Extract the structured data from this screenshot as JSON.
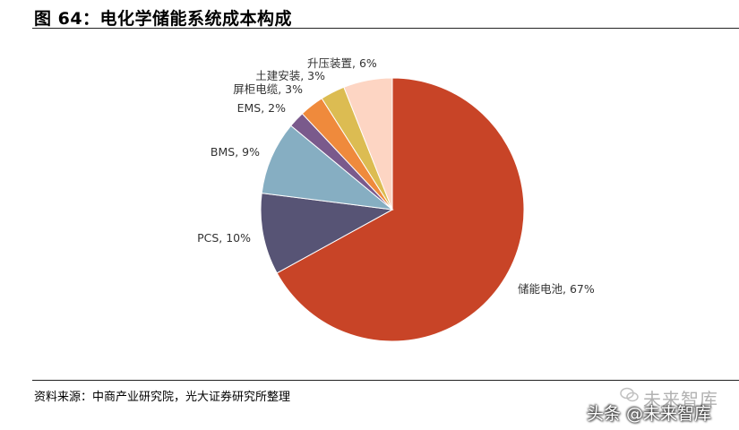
{
  "header": {
    "title": "图 64：电化学储能系统成本构成"
  },
  "footer": {
    "source": "资料来源：中商产业研究院，光大证券研究所整理"
  },
  "watermark": {
    "line1": "未来智库",
    "line2": "头条 @未来智库"
  },
  "chart_data": {
    "type": "pie",
    "title": "",
    "slices": [
      {
        "label": "储能电池, 67%",
        "value": 67,
        "color": "#c84427"
      },
      {
        "label": "PCS, 10%",
        "value": 10,
        "color": "#575475"
      },
      {
        "label": "BMS, 9%",
        "value": 9,
        "color": "#86aec2"
      },
      {
        "label": "EMS, 2%",
        "value": 2,
        "color": "#7a5a8c"
      },
      {
        "label": "屏柜电缆, 3%",
        "value": 3,
        "color": "#ef8a3c"
      },
      {
        "label": "土建安装, 3%",
        "value": 3,
        "color": "#dcbc52"
      },
      {
        "label": "升压装置, 6%",
        "value": 6,
        "color": "#fdd5c3"
      }
    ]
  }
}
